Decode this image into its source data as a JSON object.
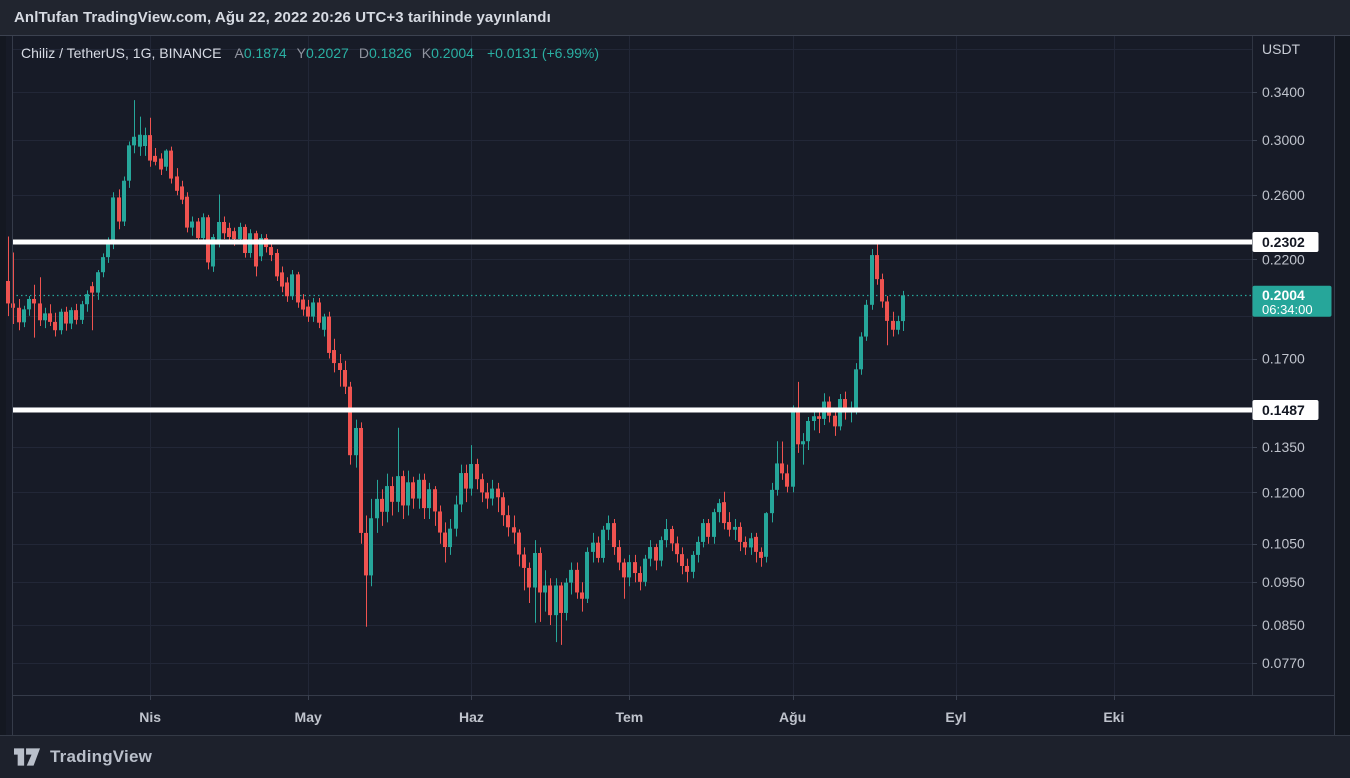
{
  "header": {
    "published_text": "AnlTufan TradingView.com, Ağu 22, 2022 20:26 UTC+3 tarihinde yayınlandı"
  },
  "legend": {
    "symbol_title": "Chiliz / TetherUS, 1G, BINANCE",
    "ohlc": [
      {
        "key": "A",
        "value": "0.1874"
      },
      {
        "key": "Y",
        "value": "0.2027"
      },
      {
        "key": "D",
        "value": "0.1826"
      },
      {
        "key": "K",
        "value": "0.2004"
      }
    ],
    "change": "+0.0131 (+6.99%)"
  },
  "footer": {
    "brand": "TradingView"
  },
  "colors": {
    "up": "#26a69a",
    "down": "#ef5350",
    "level_line": "#ffffff",
    "grid": "#222737",
    "chart_bg": "#171b27",
    "margin_bg": "#141821",
    "frame": "#353b49",
    "tick_text": "#bfc3cc",
    "label_box_text": "#131722"
  },
  "chart_data": {
    "type": "candlestick",
    "title": "Chiliz / TetherUS, 1G, BINANCE",
    "currency_label": "USDT",
    "scale": "log",
    "interval": "1G",
    "price_ticks": [
      {
        "value": 0.34,
        "label": "0.3400"
      },
      {
        "value": 0.3,
        "label": "0.3000"
      },
      {
        "value": 0.26,
        "label": "0.2600"
      },
      {
        "value": 0.22,
        "label": "0.2200"
      },
      {
        "value": 0.17,
        "label": "0.1700"
      },
      {
        "value": 0.135,
        "label": "0.1350"
      },
      {
        "value": 0.12,
        "label": "0.1200"
      },
      {
        "value": 0.105,
        "label": "0.1050"
      },
      {
        "value": 0.095,
        "label": "0.0950"
      },
      {
        "value": 0.085,
        "label": "0.0850"
      },
      {
        "value": 0.077,
        "label": "0.0770"
      }
    ],
    "unlabeled_grid_prices": [
      0.38,
      0.19,
      0.15
    ],
    "time_labels": [
      {
        "label": "Nis",
        "day": 27
      },
      {
        "label": "May",
        "day": 57
      },
      {
        "label": "Haz",
        "day": 88
      },
      {
        "label": "Tem",
        "day": 118
      },
      {
        "label": "Ağu",
        "day": 149
      },
      {
        "label": "Eyl",
        "day": 180
      },
      {
        "label": "Eki",
        "day": 210
      }
    ],
    "levels": [
      {
        "value": 0.2302,
        "label": "0.2302"
      },
      {
        "value": 0.1487,
        "label": "0.1487"
      }
    ],
    "last_price": {
      "value": 0.2004,
      "label": "0.2004",
      "countdown": "06:34:00",
      "direction": "up"
    },
    "ohlc_display": {
      "open": "0.1874",
      "high": "0.2027",
      "low": "0.1826",
      "close": "0.2004",
      "change": "+0.0131 (+6.99%)"
    },
    "ylim": [
      0.077,
      0.38
    ],
    "candles": [
      [
        0.208,
        0.2335,
        0.1898,
        0.1962
      ],
      [
        0.1962,
        0.224,
        0.186,
        0.194
      ],
      [
        0.194,
        0.1985,
        0.183,
        0.1868
      ],
      [
        0.1868,
        0.195,
        0.1845,
        0.1932
      ],
      [
        0.1932,
        0.2,
        0.19,
        0.1985
      ],
      [
        0.1985,
        0.206,
        0.1795,
        0.1962
      ],
      [
        0.1962,
        0.21,
        0.185,
        0.1878
      ],
      [
        0.1878,
        0.194,
        0.184,
        0.1912
      ],
      [
        0.1912,
        0.1958,
        0.185,
        0.187
      ],
      [
        0.187,
        0.1915,
        0.18,
        0.183
      ],
      [
        0.183,
        0.1935,
        0.181,
        0.192
      ],
      [
        0.192,
        0.1945,
        0.1828,
        0.1862
      ],
      [
        0.1862,
        0.1942,
        0.1835,
        0.1928
      ],
      [
        0.1928,
        0.196,
        0.1858,
        0.188
      ],
      [
        0.188,
        0.1975,
        0.186,
        0.1958
      ],
      [
        0.1958,
        0.203,
        0.192,
        0.201
      ],
      [
        0.2052,
        0.2075,
        0.183,
        0.2018
      ],
      [
        0.2018,
        0.214,
        0.198,
        0.2128
      ],
      [
        0.2128,
        0.2235,
        0.21,
        0.2213
      ],
      [
        0.2213,
        0.233,
        0.218,
        0.2298
      ],
      [
        0.2298,
        0.262,
        0.226,
        0.2585
      ],
      [
        0.2585,
        0.264,
        0.238,
        0.2428
      ],
      [
        0.2428,
        0.273,
        0.24,
        0.27
      ],
      [
        0.27,
        0.299,
        0.265,
        0.296
      ],
      [
        0.296,
        0.333,
        0.29,
        0.3027
      ],
      [
        0.295,
        0.319,
        0.288,
        0.3043
      ],
      [
        0.2955,
        0.31,
        0.288,
        0.304
      ],
      [
        0.304,
        0.318,
        0.28,
        0.2845
      ],
      [
        0.288,
        0.294,
        0.281,
        0.2836
      ],
      [
        0.286,
        0.29,
        0.274,
        0.278
      ],
      [
        0.28,
        0.293,
        0.277,
        0.292
      ],
      [
        0.292,
        0.295,
        0.268,
        0.2715
      ],
      [
        0.273,
        0.279,
        0.26,
        0.263
      ],
      [
        0.266,
        0.27,
        0.254,
        0.257
      ],
      [
        0.259,
        0.262,
        0.236,
        0.239
      ],
      [
        0.239,
        0.246,
        0.234,
        0.2428
      ],
      [
        0.2428,
        0.245,
        0.229,
        0.2326
      ],
      [
        0.2326,
        0.248,
        0.23,
        0.2455
      ],
      [
        0.2455,
        0.247,
        0.2144,
        0.2183
      ],
      [
        0.216,
        0.235,
        0.213,
        0.2332
      ],
      [
        0.2296,
        0.2605,
        0.227,
        0.2425
      ],
      [
        0.2425,
        0.246,
        0.232,
        0.2355
      ],
      [
        0.2388,
        0.242,
        0.231,
        0.2332
      ],
      [
        0.2368,
        0.239,
        0.228,
        0.232
      ],
      [
        0.232,
        0.242,
        0.229,
        0.2394
      ],
      [
        0.2394,
        0.241,
        0.221,
        0.2237
      ],
      [
        0.2237,
        0.238,
        0.221,
        0.2355
      ],
      [
        0.2355,
        0.237,
        0.2105,
        0.216
      ],
      [
        0.2218,
        0.235,
        0.219,
        0.2326
      ],
      [
        0.2326,
        0.235,
        0.224,
        0.2272
      ],
      [
        0.2272,
        0.23,
        0.219,
        0.2225
      ],
      [
        0.2237,
        0.226,
        0.208,
        0.2105
      ],
      [
        0.2127,
        0.216,
        0.202,
        0.205
      ],
      [
        0.2072,
        0.21,
        0.197,
        0.1999
      ],
      [
        0.1999,
        0.214,
        0.198,
        0.2116
      ],
      [
        0.2116,
        0.213,
        0.194,
        0.1967
      ],
      [
        0.1982,
        0.201,
        0.19,
        0.1931
      ],
      [
        0.1946,
        0.198,
        0.187,
        0.1896
      ],
      [
        0.1896,
        0.199,
        0.187,
        0.1967
      ],
      [
        0.1967,
        0.199,
        0.184,
        0.1866
      ],
      [
        0.1832,
        0.191,
        0.18,
        0.1896
      ],
      [
        0.1896,
        0.192,
        0.17,
        0.1725
      ],
      [
        0.1738,
        0.179,
        0.164,
        0.168
      ],
      [
        0.168,
        0.172,
        0.158,
        0.165
      ],
      [
        0.165,
        0.169,
        0.155,
        0.158
      ],
      [
        0.158,
        0.16,
        0.129,
        0.1322
      ],
      [
        0.1322,
        0.145,
        0.128,
        0.1419
      ],
      [
        0.1419,
        0.144,
        0.105,
        0.108
      ],
      [
        0.108,
        0.113,
        0.0846,
        0.0967
      ],
      [
        0.0967,
        0.118,
        0.094,
        0.1122
      ],
      [
        0.1122,
        0.124,
        0.108,
        0.118
      ],
      [
        0.118,
        0.121,
        0.11,
        0.1141
      ],
      [
        0.1141,
        0.126,
        0.111,
        0.122
      ],
      [
        0.122,
        0.125,
        0.113,
        0.1171
      ],
      [
        0.1171,
        0.142,
        0.114,
        0.1252
      ],
      [
        0.1252,
        0.127,
        0.112,
        0.116
      ],
      [
        0.116,
        0.127,
        0.113,
        0.1232
      ],
      [
        0.1232,
        0.125,
        0.115,
        0.1181
      ],
      [
        0.1181,
        0.126,
        0.115,
        0.124
      ],
      [
        0.124,
        0.126,
        0.112,
        0.1152
      ],
      [
        0.1152,
        0.123,
        0.112,
        0.121
      ],
      [
        0.121,
        0.122,
        0.11,
        0.1142
      ],
      [
        0.1142,
        0.116,
        0.105,
        0.1081
      ],
      [
        0.1081,
        0.111,
        0.1,
        0.1041
      ],
      [
        0.1041,
        0.112,
        0.102,
        0.1092
      ],
      [
        0.1092,
        0.119,
        0.107,
        0.1163
      ],
      [
        0.1163,
        0.129,
        0.114,
        0.1262
      ],
      [
        0.1262,
        0.129,
        0.117,
        0.1212
      ],
      [
        0.1212,
        0.1357,
        0.119,
        0.1292
      ],
      [
        0.1292,
        0.131,
        0.121,
        0.1242
      ],
      [
        0.1242,
        0.126,
        0.117,
        0.12
      ],
      [
        0.12,
        0.123,
        0.115,
        0.1181
      ],
      [
        0.1181,
        0.124,
        0.116,
        0.1212
      ],
      [
        0.1212,
        0.123,
        0.114,
        0.1185
      ],
      [
        0.1185,
        0.12,
        0.11,
        0.1131
      ],
      [
        0.1131,
        0.116,
        0.107,
        0.1096
      ],
      [
        0.1096,
        0.113,
        0.105,
        0.1081
      ],
      [
        0.1081,
        0.109,
        0.099,
        0.1021
      ],
      [
        0.1021,
        0.104,
        0.093,
        0.0986
      ],
      [
        0.0986,
        0.1,
        0.09,
        0.0937
      ],
      [
        0.0937,
        0.106,
        0.0855,
        0.1025
      ],
      [
        0.1025,
        0.104,
        0.0857,
        0.0925
      ],
      [
        0.0925,
        0.098,
        0.088,
        0.0942
      ],
      [
        0.0942,
        0.096,
        0.085,
        0.0872
      ],
      [
        0.0872,
        0.096,
        0.0813,
        0.0942
      ],
      [
        0.0942,
        0.095,
        0.0807,
        0.0877
      ],
      [
        0.0877,
        0.096,
        0.086,
        0.0949
      ],
      [
        0.0949,
        0.1,
        0.092,
        0.0981
      ],
      [
        0.0981,
        0.1,
        0.091,
        0.0925
      ],
      [
        0.0925,
        0.095,
        0.088,
        0.091
      ],
      [
        0.091,
        0.104,
        0.09,
        0.1028
      ],
      [
        0.1028,
        0.108,
        0.1,
        0.1053
      ],
      [
        0.1053,
        0.107,
        0.1,
        0.1012
      ],
      [
        0.1012,
        0.11,
        0.1,
        0.1089
      ],
      [
        0.1089,
        0.113,
        0.106,
        0.1108
      ],
      [
        0.1108,
        0.112,
        0.102,
        0.1041
      ],
      [
        0.1041,
        0.106,
        0.098,
        0.1
      ],
      [
        0.1,
        0.101,
        0.091,
        0.0962
      ],
      [
        0.0962,
        0.102,
        0.094,
        0.1001
      ],
      [
        0.1001,
        0.102,
        0.095,
        0.0973
      ],
      [
        0.0973,
        0.099,
        0.093,
        0.0951
      ],
      [
        0.0951,
        0.102,
        0.094,
        0.101
      ],
      [
        0.101,
        0.106,
        0.099,
        0.1041
      ],
      [
        0.1041,
        0.105,
        0.098,
        0.1005
      ],
      [
        0.1005,
        0.107,
        0.099,
        0.106
      ],
      [
        0.106,
        0.112,
        0.104,
        0.1091
      ],
      [
        0.1091,
        0.11,
        0.103,
        0.1051
      ],
      [
        0.1051,
        0.107,
        0.1,
        0.1022
      ],
      [
        0.1022,
        0.104,
        0.097,
        0.0991
      ],
      [
        0.0991,
        0.101,
        0.095,
        0.0976
      ],
      [
        0.0976,
        0.103,
        0.096,
        0.102
      ],
      [
        0.102,
        0.107,
        0.1,
        0.1055
      ],
      [
        0.1055,
        0.112,
        0.104,
        0.1108
      ],
      [
        0.1108,
        0.112,
        0.105,
        0.1069
      ],
      [
        0.1069,
        0.115,
        0.105,
        0.114
      ],
      [
        0.114,
        0.118,
        0.111,
        0.1167
      ],
      [
        0.117,
        0.1202,
        0.109,
        0.1108
      ],
      [
        0.1111,
        0.114,
        0.107,
        0.1089
      ],
      [
        0.1089,
        0.112,
        0.106,
        0.1097
      ],
      [
        0.1097,
        0.111,
        0.103,
        0.1055
      ],
      [
        0.1055,
        0.107,
        0.102,
        0.104
      ],
      [
        0.104,
        0.108,
        0.102,
        0.1065
      ],
      [
        0.1069,
        0.108,
        0.1,
        0.1028
      ],
      [
        0.1028,
        0.104,
        0.0989,
        0.1012
      ],
      [
        0.1015,
        0.114,
        0.1,
        0.1137
      ],
      [
        0.1137,
        0.123,
        0.111,
        0.1208
      ],
      [
        0.1208,
        0.1371,
        0.119,
        0.1294
      ],
      [
        0.1294,
        0.137,
        0.124,
        0.1261
      ],
      [
        0.1261,
        0.129,
        0.12,
        0.1218
      ],
      [
        0.1218,
        0.1505,
        0.12,
        0.1497
      ],
      [
        0.1494,
        0.16,
        0.133,
        0.136
      ],
      [
        0.136,
        0.14,
        0.129,
        0.1371
      ],
      [
        0.1371,
        0.146,
        0.134,
        0.1445
      ],
      [
        0.1445,
        0.149,
        0.141,
        0.1463
      ],
      [
        0.1463,
        0.148,
        0.14,
        0.1453
      ],
      [
        0.1453,
        0.1553,
        0.143,
        0.152
      ],
      [
        0.152,
        0.154,
        0.144,
        0.1465
      ],
      [
        0.1465,
        0.148,
        0.139,
        0.1425
      ],
      [
        0.1425,
        0.155,
        0.141,
        0.153
      ],
      [
        0.153,
        0.156,
        0.145,
        0.148
      ],
      [
        0.148,
        0.152,
        0.144,
        0.1494
      ],
      [
        0.1494,
        0.168,
        0.147,
        0.1653
      ],
      [
        0.1653,
        0.182,
        0.163,
        0.18
      ],
      [
        0.18,
        0.198,
        0.178,
        0.1955
      ],
      [
        0.1955,
        0.226,
        0.193,
        0.2225
      ],
      [
        0.2225,
        0.2302,
        0.206,
        0.209
      ],
      [
        0.209,
        0.212,
        0.194,
        0.1972
      ],
      [
        0.1972,
        0.2,
        0.176,
        0.1875
      ],
      [
        0.1875,
        0.192,
        0.18,
        0.1832
      ],
      [
        0.1832,
        0.19,
        0.181,
        0.1874
      ],
      [
        0.1874,
        0.2027,
        0.1826,
        0.2004
      ]
    ]
  }
}
